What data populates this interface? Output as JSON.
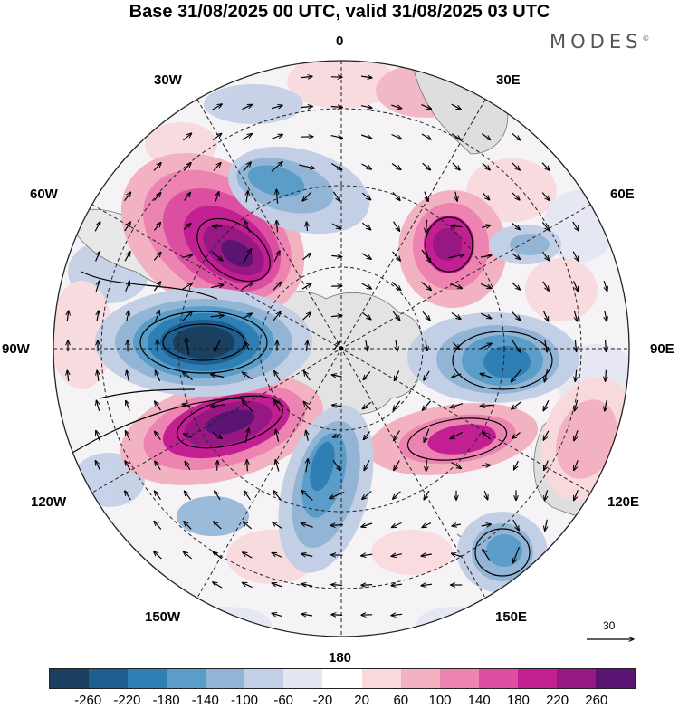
{
  "title": "Base 31/08/2025 00 UTC, valid 31/08/2025 03 UTC",
  "brand": "MODES",
  "brand_mark": "©",
  "longitude_labels": {
    "lon_0": "0",
    "lon_30e": "30E",
    "lon_60e": "60E",
    "lon_90e": "90E",
    "lon_120e": "120E",
    "lon_150e": "150E",
    "lon_180": "180",
    "lon_150w": "150W",
    "lon_120w": "120W",
    "lon_90w": "90W",
    "lon_60w": "60W",
    "lon_30w": "30W"
  },
  "reference_vector_label": "30",
  "colorbar": {
    "colors": [
      "#1b3f5f",
      "#1f5f8f",
      "#2e7fb3",
      "#5a9dc9",
      "#92b5d6",
      "#c2cfe5",
      "#e4e6f2",
      "#ffffff",
      "#f8d9dc",
      "#f3b2c2",
      "#ec83b0",
      "#dc4fa0",
      "#c21f93",
      "#971783",
      "#5c1472"
    ],
    "tick_labels": [
      "-260",
      "-220",
      "-180",
      "-140",
      "-100",
      "-60",
      "-20",
      "20",
      "60",
      "100",
      "140",
      "180",
      "220",
      "260"
    ]
  },
  "colors": {
    "land": "#e3e3e3",
    "coast": "#777777",
    "grid": "#222222"
  }
}
